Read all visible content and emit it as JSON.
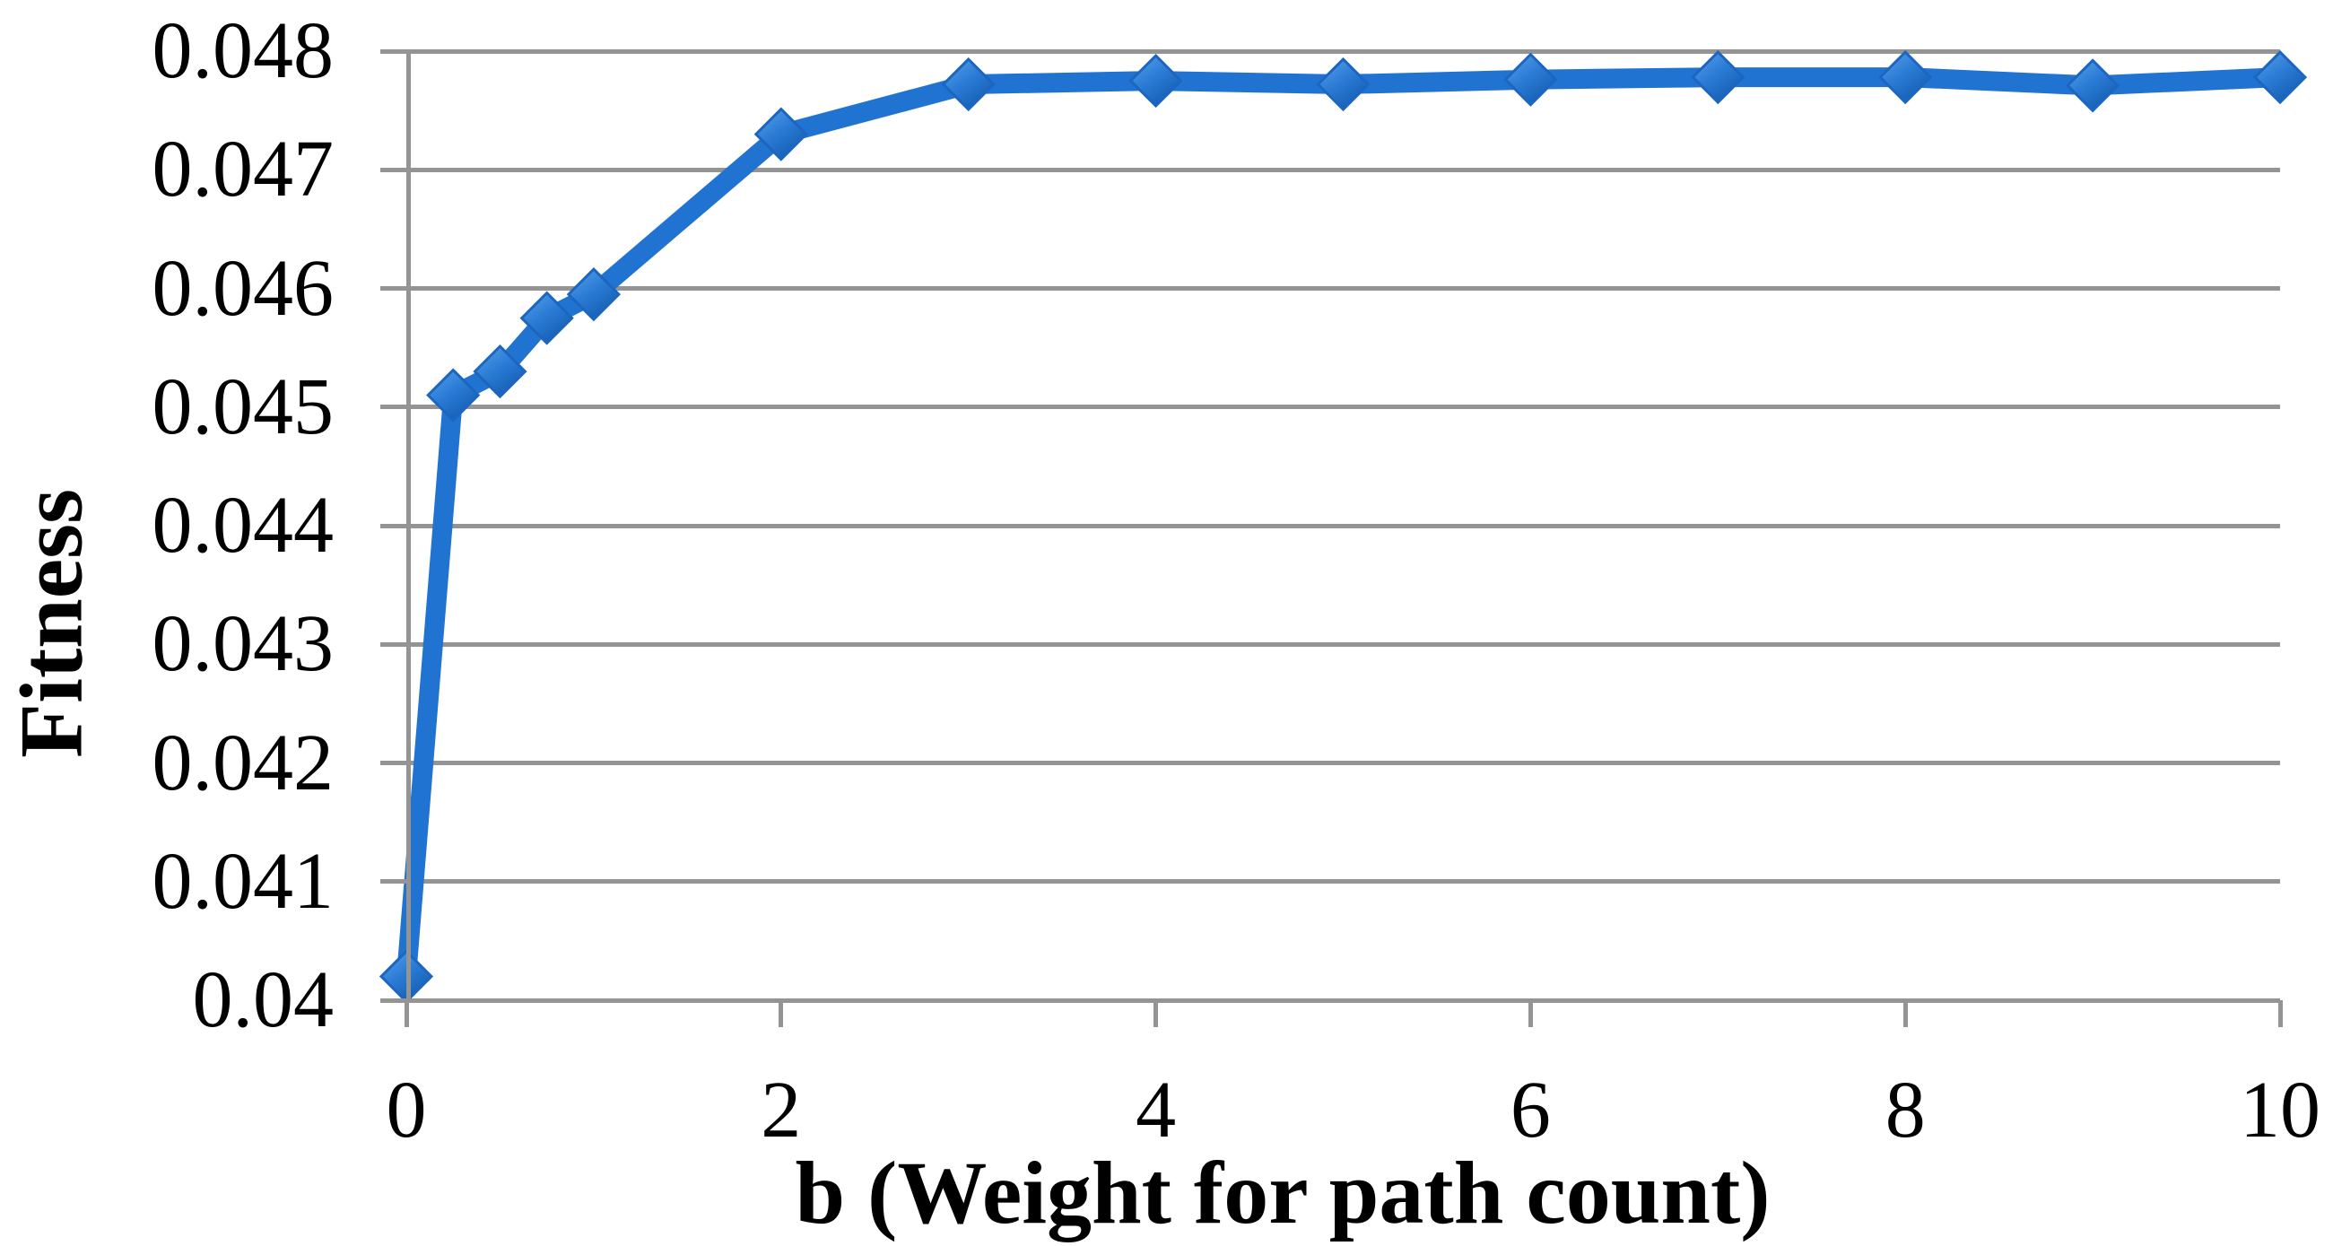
{
  "chart_data": {
    "type": "line",
    "title": "",
    "xlabel": "b (Weight for path count)",
    "ylabel": "Fitness",
    "xlim": [
      0,
      10
    ],
    "ylim": [
      0.04,
      0.048
    ],
    "xticks": [
      "0",
      "2",
      "4",
      "6",
      "8",
      "10"
    ],
    "xtick_values": [
      0,
      2,
      4,
      6,
      8,
      10
    ],
    "yticks": [
      "0.048",
      "0.047",
      "0.046",
      "0.045",
      "0.044",
      "0.043",
      "0.042",
      "0.041",
      "0.04"
    ],
    "ytick_values": [
      0.048,
      0.047,
      0.046,
      0.045,
      0.044,
      0.043,
      0.042,
      0.041,
      0.04
    ],
    "grid": "horizontal",
    "legend": "none",
    "series": [
      {
        "name": "Fitness",
        "marker": "diamond",
        "x": [
          0,
          0.25,
          0.5,
          0.75,
          1,
          2,
          3,
          4,
          5,
          6,
          7,
          8,
          9,
          10
        ],
        "y": [
          0.0402,
          0.0451,
          0.0453,
          0.04575,
          0.04595,
          0.0473,
          0.04772,
          0.04775,
          0.04772,
          0.04776,
          0.04778,
          0.04778,
          0.04771,
          0.04778
        ]
      }
    ],
    "colors": {
      "line": "#2173D2",
      "marker_light": "#5CA3EA",
      "marker_mid": "#2B7CD6",
      "marker_dark": "#135CB0",
      "marker_edge": "#1C66C0",
      "gridline": "#949494",
      "text": "#000000",
      "background": "#FFFFFF"
    }
  }
}
